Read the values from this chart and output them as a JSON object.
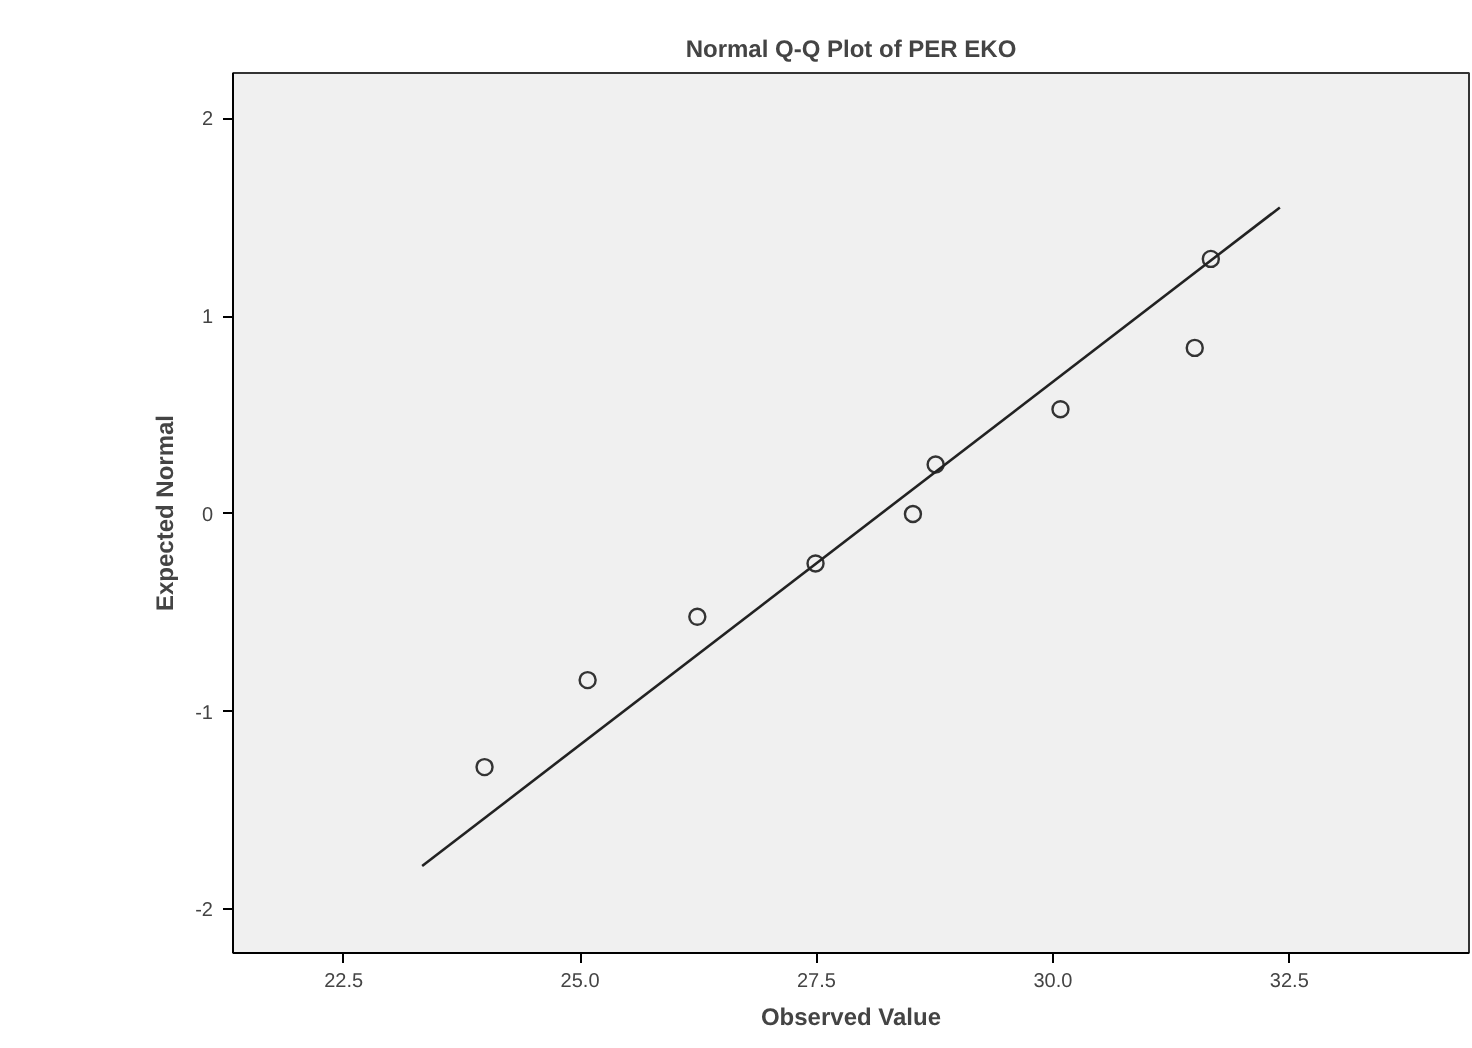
{
  "chart_data": {
    "type": "scatter",
    "title": "Normal Q-Q Plot of PER EKO",
    "xlabel": "Observed Value",
    "ylabel": "Expected Normal",
    "x": [
      23.99,
      25.08,
      26.24,
      27.49,
      28.52,
      28.76,
      30.08,
      31.5,
      31.67
    ],
    "series": [
      {
        "color": "#333333",
        "marker": "circle",
        "values": [
          -1.28,
          -0.84,
          -0.52,
          -0.25,
          0,
          0.25,
          0.53,
          0.84,
          1.29
        ]
      },
      {
        "type": "line",
        "color": "#222222",
        "x": [
          23.33,
          32.4
        ],
        "values": [
          -1.78,
          1.55
        ]
      }
    ],
    "xlim": [
      21.33,
      34.4
    ],
    "ylim": [
      -2.22,
      2.23
    ],
    "xticks": [
      22.5,
      {
        "value": 25,
        "label": "25.0"
      },
      27.5,
      {
        "value": 30,
        "label": "30.0"
      },
      32.5
    ],
    "yticks": [
      -2,
      -1,
      0,
      1,
      2
    ],
    "grid": false
  }
}
